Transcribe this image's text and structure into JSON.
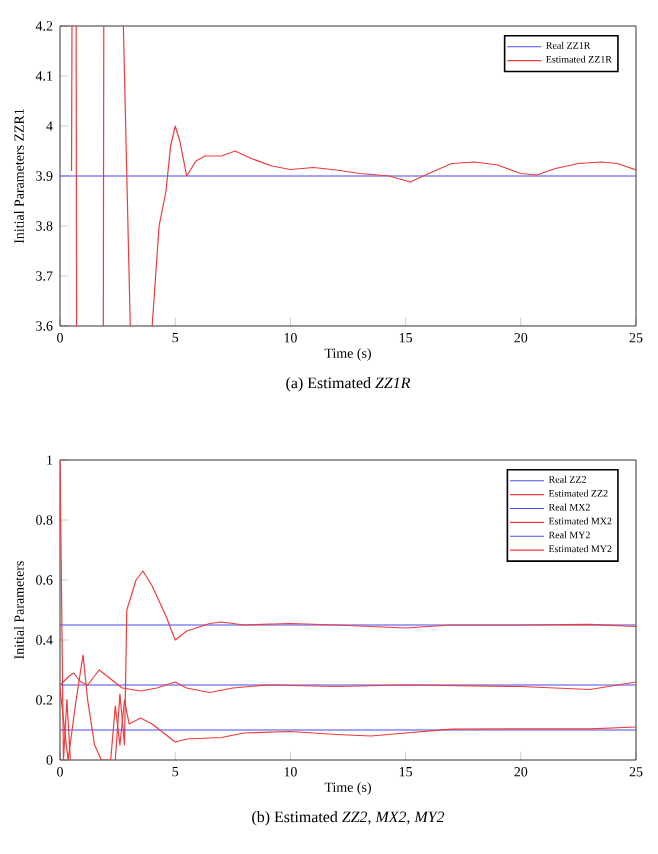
{
  "chart_data": [
    {
      "type": "line",
      "xlabel": "Time (s)",
      "ylabel": "Initial Parameters ZZR1",
      "xlim": [
        0,
        25
      ],
      "ylim": [
        3.6,
        4.2
      ],
      "xticks": [
        0,
        5,
        10,
        15,
        20,
        25
      ],
      "yticks": [
        3.6,
        3.7,
        3.8,
        3.9,
        4,
        4.1,
        4.2
      ],
      "legend": "top right",
      "annotations": [
        "(a) Estimated *ZZ1R*"
      ],
      "series": [
        {
          "name": "Real ZZ1R",
          "color": "#4b4bf0",
          "x": [
            0,
            25
          ],
          "values": [
            3.9,
            3.9
          ]
        },
        {
          "name": "Estimated ZZ1R",
          "color": "#ee3b3b",
          "x": [
            0.5,
            0.52,
            0.6,
            0.7,
            0.72,
            1.3,
            1.88,
            1.9,
            2.3,
            2.75,
            3.05,
            3.5,
            4.0,
            4.3,
            4.6,
            4.8,
            5.0,
            5.2,
            5.5,
            5.9,
            6.3,
            7.0,
            7.6,
            8.3,
            9.2,
            10,
            11,
            12,
            13,
            14.3,
            15.2,
            16,
            17,
            18,
            19,
            20,
            20.7,
            21.5,
            22.5,
            23.5,
            24.2,
            25
          ],
          "values": [
            3.91,
            4.2,
            null,
            4.2,
            3.6,
            null,
            3.6,
            4.2,
            null,
            4.2,
            3.6,
            null,
            3.6,
            3.8,
            3.87,
            3.96,
            4.0,
            3.97,
            3.9,
            3.93,
            3.94,
            3.94,
            3.95,
            3.935,
            3.92,
            3.913,
            3.917,
            3.912,
            3.905,
            3.9,
            3.888,
            3.905,
            3.925,
            3.928,
            3.922,
            3.905,
            3.902,
            3.915,
            3.925,
            3.928,
            3.925,
            3.912
          ]
        }
      ]
    },
    {
      "type": "line",
      "xlabel": "Time (s)",
      "ylabel": "Initial Parameters",
      "xlim": [
        0,
        25
      ],
      "ylim": [
        0,
        1
      ],
      "xticks": [
        0,
        5,
        10,
        15,
        20,
        25
      ],
      "yticks": [
        0,
        0.2,
        0.4,
        0.6,
        0.8,
        1
      ],
      "legend": "top right",
      "annotations": [
        "(b) Estimated *ZZ2*, *MX2*, *MY2*"
      ],
      "series": [
        {
          "name": "Real ZZ2",
          "color": "#4b4bf0",
          "x": [
            0,
            25
          ],
          "values": [
            0.45,
            0.45
          ]
        },
        {
          "name": "Estimated ZZ2",
          "color": "#ee3b3b",
          "x": [
            0,
            0.15,
            0.3,
            0.45,
            0.6,
            2.4,
            2.6,
            2.8,
            2.9,
            3.3,
            3.6,
            4.0,
            4.6,
            5.0,
            5.5,
            6.5,
            7,
            8,
            10,
            12,
            15,
            17,
            20,
            23,
            25
          ],
          "values": [
            1.0,
            0,
            0.2,
            0,
            null,
            0,
            0.22,
            0.05,
            0.5,
            0.6,
            0.63,
            0.58,
            0.48,
            0.4,
            0.43,
            0.455,
            0.46,
            0.45,
            0.455,
            0.45,
            0.44,
            0.45,
            0.45,
            0.452,
            0.445
          ]
        },
        {
          "name": "Real MX2",
          "color": "#4b4bf0",
          "x": [
            0,
            25
          ],
          "values": [
            0.25,
            0.25
          ]
        },
        {
          "name": "Estimated MX2",
          "color": "#ee3b3b",
          "x": [
            0,
            0.4,
            0.6,
            0.9,
            1.2,
            1.7,
            2.2,
            2.7,
            3.5,
            4.2,
            5,
            5.5,
            6.5,
            7.5,
            9,
            12,
            15,
            20,
            23,
            25
          ],
          "values": [
            0.25,
            0.28,
            0.29,
            0.26,
            0.25,
            0.3,
            0.27,
            0.24,
            0.23,
            0.24,
            0.26,
            0.24,
            0.225,
            0.24,
            0.25,
            0.245,
            0.25,
            0.245,
            0.235,
            0.26
          ]
        },
        {
          "name": "Real MY2",
          "color": "#4b4bf0",
          "x": [
            0,
            25
          ],
          "values": [
            0.1,
            0.1
          ]
        },
        {
          "name": "Estimated MY2",
          "color": "#ee3b3b",
          "x": [
            0,
            0.2,
            0.35,
            0.7,
            1.0,
            1.2,
            1.5,
            1.8,
            2.2,
            2.4,
            2.6,
            2.8,
            3.0,
            3.5,
            4.0,
            4.5,
            5.0,
            5.5,
            7,
            8,
            10,
            12,
            13.5,
            15,
            17,
            20,
            23,
            25
          ],
          "values": [
            0.24,
            0.1,
            0,
            0.2,
            0.35,
            0.2,
            0.05,
            0,
            0,
            0.18,
            0.05,
            0.2,
            0.12,
            0.14,
            0.12,
            0.09,
            0.06,
            0.07,
            0.075,
            0.09,
            0.095,
            0.085,
            0.08,
            0.09,
            0.103,
            0.104,
            0.104,
            0.11
          ]
        }
      ]
    }
  ]
}
